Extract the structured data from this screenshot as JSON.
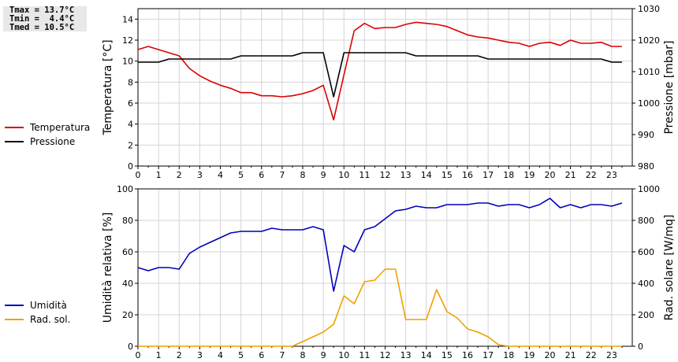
{
  "stats": {
    "tmax": "Tmax = 13.7°C",
    "tmin": "Tmin =  4.4°C",
    "tmed": "Tmed = 10.5°C"
  },
  "chart_data": [
    {
      "type": "line",
      "ylabel": "Temperatura [°C]",
      "y2label": "Pressione [mbar]",
      "xlim": [
        0,
        24
      ],
      "ylim": [
        0,
        15
      ],
      "y2lim": [
        980,
        1030
      ],
      "xticks": [
        0,
        1,
        2,
        3,
        4,
        5,
        6,
        7,
        8,
        9,
        10,
        11,
        12,
        13,
        14,
        15,
        16,
        17,
        18,
        19,
        20,
        21,
        22,
        23
      ],
      "yticks": [
        0,
        2,
        4,
        6,
        8,
        10,
        12,
        14
      ],
      "y2ticks": [
        980,
        990,
        1000,
        1010,
        1020,
        1030
      ],
      "grid": true,
      "legend_position": "left",
      "series": [
        {
          "name": "Temperatura",
          "color": "#dd0000",
          "axis": "left",
          "x": [
            0,
            0.5,
            1,
            1.5,
            2,
            2.5,
            3,
            3.5,
            4,
            4.5,
            5,
            5.5,
            6,
            6.5,
            7,
            7.5,
            8,
            8.5,
            9,
            9.5,
            10,
            10.5,
            11,
            11.5,
            12,
            12.5,
            13,
            13.5,
            14,
            14.5,
            15,
            15.5,
            16,
            16.5,
            17,
            17.5,
            18,
            18.5,
            19,
            19.5,
            20,
            20.5,
            21,
            21.5,
            22,
            22.5,
            23,
            23.5
          ],
          "values": [
            11.1,
            11.4,
            11.1,
            10.8,
            10.5,
            9.3,
            8.6,
            8.1,
            7.7,
            7.4,
            7.0,
            7.0,
            6.7,
            6.7,
            6.6,
            6.7,
            6.9,
            7.2,
            7.7,
            4.4,
            8.7,
            12.9,
            13.6,
            13.1,
            13.2,
            13.2,
            13.5,
            13.7,
            13.6,
            13.5,
            13.3,
            12.9,
            12.5,
            12.3,
            12.2,
            12.0,
            11.8,
            11.7,
            11.4,
            11.7,
            11.8,
            11.5,
            12.0,
            11.7,
            11.7,
            11.8,
            11.4,
            11.4
          ]
        },
        {
          "name": "Pressione",
          "color": "#000000",
          "axis": "right",
          "x": [
            0,
            1,
            1.5,
            4.5,
            5,
            7.5,
            8,
            9,
            9.5,
            10,
            13,
            13.5,
            16.5,
            17,
            22.5,
            23,
            23.5
          ],
          "values": [
            1013,
            1013,
            1014,
            1014,
            1015,
            1015,
            1016,
            1016,
            1002,
            1016,
            1016,
            1015,
            1015,
            1014,
            1014,
            1013,
            1013
          ]
        }
      ]
    },
    {
      "type": "line",
      "ylabel": "Umidità relativa [%]",
      "y2label": "Rad. solare [W/mq]",
      "xlim": [
        0,
        24
      ],
      "ylim": [
        0,
        100
      ],
      "y2lim": [
        0,
        1000
      ],
      "xticks": [
        0,
        1,
        2,
        3,
        4,
        5,
        6,
        7,
        8,
        9,
        10,
        11,
        12,
        13,
        14,
        15,
        16,
        17,
        18,
        19,
        20,
        21,
        22,
        23
      ],
      "yticks": [
        0,
        20,
        40,
        60,
        80,
        100
      ],
      "y2ticks": [
        0,
        200,
        400,
        600,
        800,
        1000
      ],
      "grid": true,
      "legend_position": "left",
      "series": [
        {
          "name": "Umidità",
          "color": "#0000bb",
          "axis": "left",
          "x": [
            0,
            0.5,
            1,
            1.5,
            2,
            2.5,
            3,
            3.5,
            4,
            4.5,
            5,
            5.5,
            6,
            6.5,
            7,
            7.5,
            8,
            8.5,
            9,
            9.5,
            10,
            10.5,
            11,
            11.5,
            12,
            12.5,
            13,
            13.5,
            14,
            14.5,
            15,
            15.5,
            16,
            16.5,
            17,
            17.5,
            18,
            18.5,
            19,
            19.5,
            20,
            20.5,
            21,
            21.5,
            22,
            22.5,
            23,
            23.5
          ],
          "values": [
            50,
            48,
            50,
            50,
            49,
            59,
            63,
            66,
            69,
            72,
            73,
            73,
            73,
            75,
            74,
            74,
            74,
            76,
            74,
            35,
            64,
            60,
            74,
            76,
            81,
            86,
            87,
            89,
            88,
            88,
            90,
            90,
            90,
            91,
            91,
            89,
            90,
            90,
            88,
            90,
            94,
            88,
            90,
            88,
            90,
            90,
            89,
            91
          ]
        },
        {
          "name": "Rad. sol.",
          "color": "#f0a000",
          "axis": "right",
          "x": [
            0,
            7.5,
            8,
            8.5,
            9,
            9.5,
            10,
            10.5,
            11,
            11.5,
            12,
            12.5,
            13,
            13.5,
            14,
            14.5,
            15,
            15.5,
            16,
            16.5,
            17,
            17.5,
            18,
            23.5
          ],
          "values": [
            0,
            0,
            30,
            60,
            90,
            140,
            320,
            270,
            410,
            420,
            490,
            490,
            170,
            170,
            170,
            360,
            220,
            180,
            110,
            90,
            60,
            10,
            0,
            0
          ]
        }
      ]
    }
  ]
}
